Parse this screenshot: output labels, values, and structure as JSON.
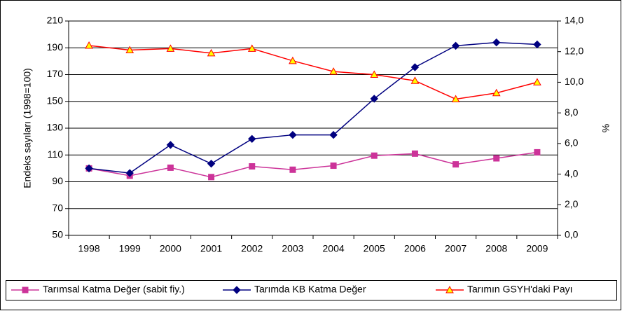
{
  "chart_data": {
    "type": "line",
    "categories": [
      "1998",
      "1999",
      "2000",
      "2001",
      "2002",
      "2003",
      "2004",
      "2005",
      "2006",
      "2007",
      "2008",
      "2009"
    ],
    "series": [
      {
        "name": "Tarımsal Katma Değer (sabit fiy.)",
        "color": "#cc3399",
        "marker": "square",
        "values": [
          100,
          94.5,
          100.5,
          93.5,
          101.5,
          99,
          102,
          109.5,
          111,
          103,
          107.5,
          112
        ]
      },
      {
        "name": "Tarımda KB Katma Değer",
        "color": "#000080",
        "marker": "diamond",
        "values": [
          100,
          96.5,
          117.5,
          103.5,
          122,
          125,
          125,
          152,
          175.5,
          191.5,
          194,
          192.5
        ]
      },
      {
        "name": "Tarımın GSYH'daki Payı",
        "color": "#ff0000",
        "marker": "triangle",
        "marker_fill": "#ffff00",
        "axis": "y2",
        "values": [
          12.4,
          12.1,
          12.2,
          11.9,
          12.2,
          11.4,
          10.7,
          10.5,
          10.1,
          8.9,
          9.3,
          10.0
        ]
      }
    ],
    "y_label": "Endeks sayıları (1998=100)",
    "y2_label": "%",
    "ylim": [
      50,
      210
    ],
    "yticks": [
      50,
      70,
      90,
      110,
      130,
      150,
      170,
      190,
      210
    ],
    "y2lim": [
      0,
      14
    ],
    "y2ticks": [
      {
        "value": 0,
        "label": "0,0"
      },
      {
        "value": 2,
        "label": "2,0"
      },
      {
        "value": 4,
        "label": "4,0"
      },
      {
        "value": 6,
        "label": "6,0"
      },
      {
        "value": 8,
        "label": "8,0"
      },
      {
        "value": 10,
        "label": "10,0"
      },
      {
        "value": 12,
        "label": "12,0"
      },
      {
        "value": 14,
        "label": "14,0"
      }
    ],
    "grid": true,
    "legend": "bottom"
  }
}
